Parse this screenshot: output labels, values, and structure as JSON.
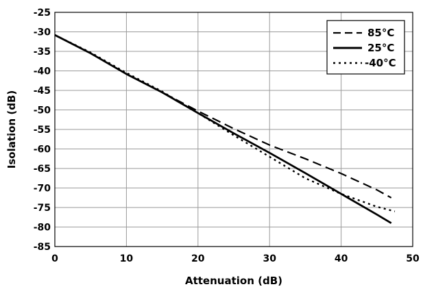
{
  "chart_data": {
    "type": "line",
    "title": "",
    "xlabel": "Attenuation (dB)",
    "ylabel": "Isolation (dB)",
    "xlim": [
      0,
      50
    ],
    "ylim": [
      -85,
      -25
    ],
    "xticks": [
      0,
      10,
      20,
      30,
      40,
      50
    ],
    "yticks": [
      -25,
      -30,
      -35,
      -40,
      -45,
      -50,
      -55,
      -60,
      -65,
      -70,
      -75,
      -80,
      -85
    ],
    "grid": true,
    "legend_position": "top-right",
    "series": [
      {
        "name": "85°C",
        "style": "dashed",
        "color": "#000000",
        "x": [
          0,
          5,
          10,
          15,
          20,
          25,
          30,
          35,
          40,
          45,
          47
        ],
        "y": [
          -30.8,
          -35.5,
          -40.8,
          -45.5,
          -50.3,
          -54.8,
          -59.0,
          -62.5,
          -66.3,
          -70.5,
          -72.5
        ]
      },
      {
        "name": "25°C",
        "style": "solid",
        "color": "#000000",
        "x": [
          0,
          5,
          10,
          15,
          20,
          25,
          30,
          35,
          40,
          45,
          47
        ],
        "y": [
          -30.8,
          -35.5,
          -40.8,
          -45.5,
          -50.8,
          -56.0,
          -61.0,
          -66.2,
          -71.5,
          -76.8,
          -79.0
        ]
      },
      {
        "name": "-40°C",
        "style": "dotted",
        "color": "#000000",
        "x": [
          0,
          5,
          10,
          15,
          20,
          25,
          30,
          35,
          40,
          45,
          47.5
        ],
        "y": [
          -30.8,
          -35.3,
          -40.5,
          -45.3,
          -50.8,
          -56.5,
          -62.0,
          -67.5,
          -71.5,
          -74.8,
          -76.0
        ]
      }
    ]
  }
}
